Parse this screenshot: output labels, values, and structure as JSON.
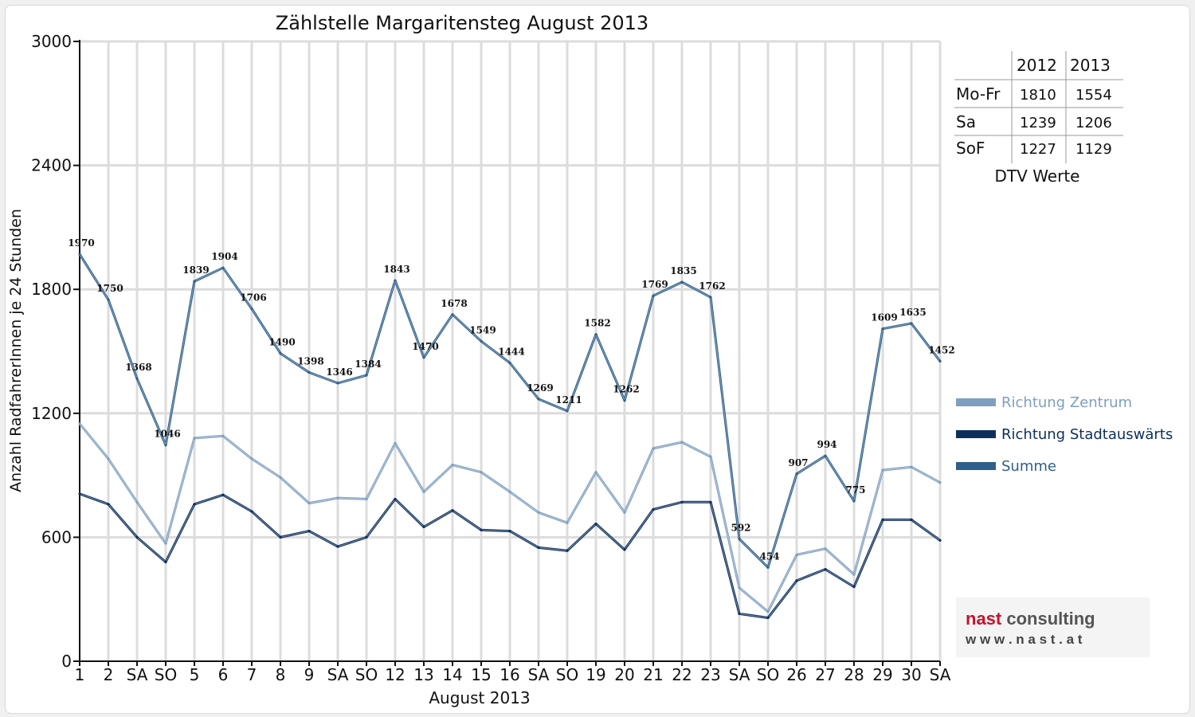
{
  "chart_data": {
    "type": "line",
    "title": "Zählstelle Margaritensteg August 2013",
    "xlabel": "August 2013",
    "ylabel": "Anzahl RadfahrerInnen je 24 Stunden",
    "ylim": [
      0,
      3000
    ],
    "yticks": [
      "0",
      "600",
      "1200",
      "1800",
      "2400",
      "3000"
    ],
    "grid": true,
    "legend_position": "right",
    "categories": [
      "1",
      "2",
      "SA",
      "SO",
      "5",
      "6",
      "7",
      "8",
      "9",
      "SA",
      "SO",
      "12",
      "13",
      "14",
      "15",
      "16",
      "SA",
      "SO",
      "19",
      "20",
      "21",
      "22",
      "23",
      "SA",
      "SO",
      "26",
      "27",
      "28",
      "29",
      "30",
      "SA"
    ],
    "highlight_categories": [
      3,
      10,
      14,
      17,
      24
    ],
    "highlight_color": "#dd0000",
    "series": [
      {
        "name": "Richtung Zentrum",
        "color": "#7f9fbf",
        "values": [
          1150,
          980,
          770,
          570,
          1080,
          1090,
          980,
          890,
          765,
          790,
          785,
          1055,
          820,
          950,
          915,
          820,
          720,
          670,
          915,
          720,
          1030,
          1060,
          990,
          355,
          240,
          515,
          545,
          420,
          925,
          940,
          865
        ]
      },
      {
        "name": "Richtung Stadtauswärts",
        "color": "#0d2f5c",
        "values": [
          810,
          760,
          600,
          480,
          760,
          805,
          725,
          600,
          630,
          555,
          600,
          785,
          650,
          730,
          635,
          630,
          550,
          535,
          665,
          540,
          735,
          770,
          770,
          230,
          210,
          390,
          445,
          360,
          685,
          685,
          585
        ]
      },
      {
        "name": "Summe",
        "color": "#2e5f8a",
        "values": [
          1970,
          1750,
          1368,
          1046,
          1839,
          1904,
          1706,
          1490,
          1398,
          1346,
          1384,
          1843,
          1470,
          1678,
          1549,
          1444,
          1269,
          1211,
          1582,
          1262,
          1769,
          1835,
          1762,
          592,
          454,
          907,
          994,
          775,
          1609,
          1635,
          1452
        ]
      }
    ],
    "data_labels": [
      "1970",
      "1750",
      "1368",
      "1046",
      "1839",
      "1904",
      "1706",
      "1490",
      "1398",
      "1346",
      "1384",
      "1843",
      "1470",
      "1678",
      "1549",
      "1444",
      "1269",
      "1211",
      "1582",
      "1262",
      "1769",
      "1835",
      "1762",
      "592",
      "454",
      "907",
      "994",
      "775",
      "1609",
      "1635",
      "1452"
    ]
  },
  "dtv_table": {
    "headers": [
      "2012",
      "2013"
    ],
    "rows": [
      {
        "label": "Mo-Fr",
        "v2012": "1810",
        "v2013": "1554"
      },
      {
        "label": "Sa",
        "v2012": "1239",
        "v2013": "1206"
      },
      {
        "label": "SoF",
        "v2012": "1227",
        "v2013": "1129"
      }
    ],
    "caption": "DTV Werte"
  },
  "logo": {
    "name_part1": "nast",
    "name_part2": " consulting",
    "url": "w w w . n a s t . a t",
    "color1": "#c8102e",
    "color2": "#555555"
  }
}
